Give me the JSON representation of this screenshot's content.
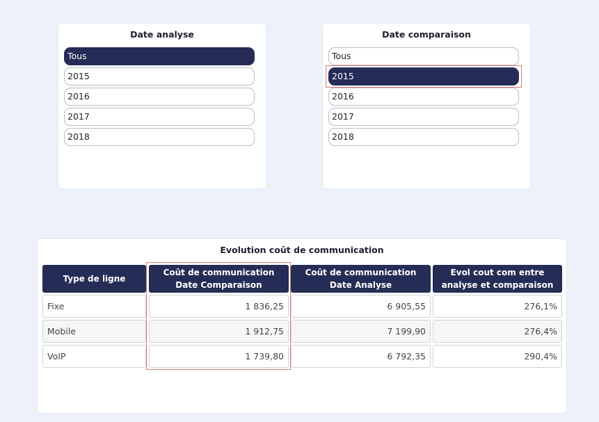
{
  "slicer_analyse": {
    "title": "Date analyse",
    "items": [
      "Tous",
      "2015",
      "2016",
      "2017",
      "2018"
    ],
    "selected": "Tous"
  },
  "slicer_comparaison": {
    "title": "Date comparaison",
    "items": [
      "Tous",
      "2015",
      "2016",
      "2017",
      "2018"
    ],
    "selected": "2015"
  },
  "table": {
    "title": "Evolution coût de communication",
    "headers": [
      "Type de ligne",
      "Coût de communication Date Comparaison",
      "Coût de communication Date Analyse",
      "Evol cout com entre analyse et comparaison"
    ],
    "rows": [
      [
        "Fixe",
        "1 836,25",
        "6 905,55",
        "276,1%"
      ],
      [
        "Mobile",
        "1 912,75",
        "7 199,90",
        "276,4%"
      ],
      [
        "VoIP",
        "1 739,80",
        "6 792,35",
        "290,4%"
      ]
    ]
  },
  "colors": {
    "header_bg": "#252c55",
    "selected_bg": "#252c55",
    "highlight": "#d77b7b",
    "page_bg": "#edf2fa"
  }
}
